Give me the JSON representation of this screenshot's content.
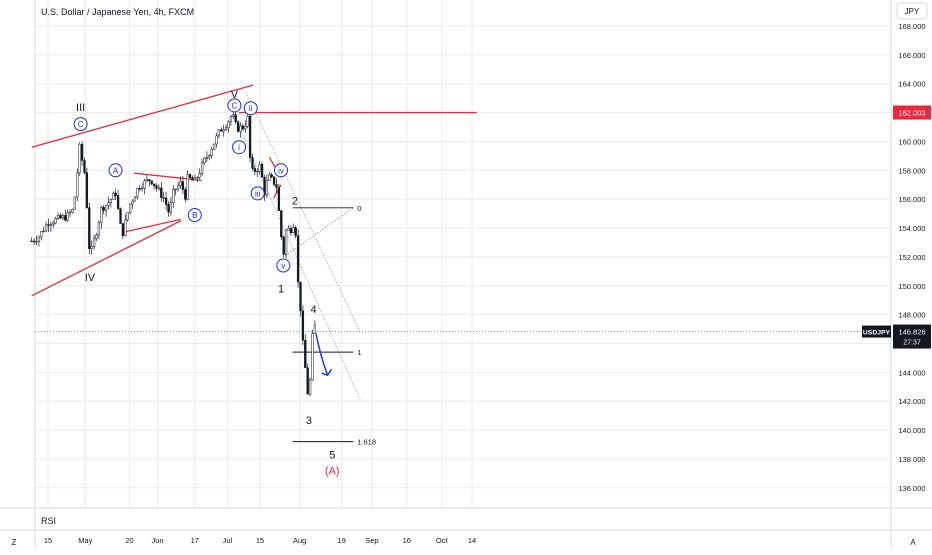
{
  "header": {
    "title": "U.S. Dollar / Japanese Yen, 4h, FXCM",
    "currency": "JPY"
  },
  "rsi_label": "RSI",
  "corner_left": "Z",
  "corner_right": "A",
  "colors": {
    "candle": "#131722",
    "trendline": "#e8283c",
    "label_blue": "#1f2ad6",
    "fib": "#131722",
    "channel": "#9aa0aa",
    "arrow": "#2741d8",
    "grid": "#e9ebee"
  },
  "chart_data": {
    "type": "candlestick",
    "symbol": "USDJPY",
    "interval": "4h",
    "y_range": [
      134.6,
      169.8
    ],
    "y_ticks": [
      "168.000",
      "166.000",
      "164.000",
      "162.000",
      "160.000",
      "158.000",
      "156.000",
      "154.000",
      "152.000",
      "150.000",
      "148.000",
      "146.000",
      "144.000",
      "142.000",
      "140.000",
      "138.000",
      "136.000"
    ],
    "x_ticks": [
      "15",
      "May",
      "20",
      "Jun",
      "17",
      "Jul",
      "15",
      "Aug",
      "19",
      "Sep",
      "16",
      "Oct",
      "14"
    ],
    "price_tags": [
      {
        "label": "162.003",
        "value": 162.003
      },
      {
        "symbol": "USDJPY",
        "label": "146.826",
        "countdown": "27:37",
        "value": 146.826
      }
    ],
    "price_path": [
      {
        "date": "2024-04-08",
        "price": 153.1
      },
      {
        "date": "2024-04-11",
        "price": 153.4
      },
      {
        "date": "2024-04-15",
        "price": 154.4
      },
      {
        "date": "2024-04-19",
        "price": 154.6
      },
      {
        "date": "2024-04-23",
        "price": 154.8
      },
      {
        "date": "2024-04-26",
        "price": 155.3
      },
      {
        "date": "2024-04-29",
        "price": 160.2
      },
      {
        "date": "2024-04-30",
        "price": 157.8
      },
      {
        "date": "2024-05-01",
        "price": 157.9
      },
      {
        "date": "2024-05-02",
        "price": 154.5
      },
      {
        "date": "2024-05-03",
        "price": 152.0
      },
      {
        "date": "2024-05-06",
        "price": 153.9
      },
      {
        "date": "2024-05-08",
        "price": 155.4
      },
      {
        "date": "2024-05-10",
        "price": 155.6
      },
      {
        "date": "2024-05-13",
        "price": 156.2
      },
      {
        "date": "2024-05-14",
        "price": 156.5
      },
      {
        "date": "2024-05-16",
        "price": 154.2
      },
      {
        "date": "2024-05-17",
        "price": 153.6
      },
      {
        "date": "2024-05-20",
        "price": 155.6
      },
      {
        "date": "2024-05-24",
        "price": 156.9
      },
      {
        "date": "2024-05-29",
        "price": 157.4
      },
      {
        "date": "2024-06-04",
        "price": 156.0
      },
      {
        "date": "2024-06-06",
        "price": 155.0
      },
      {
        "date": "2024-06-08",
        "price": 156.6
      },
      {
        "date": "2024-06-11",
        "price": 157.1
      },
      {
        "date": "2024-06-13",
        "price": 156.2
      },
      {
        "date": "2024-06-14",
        "price": 157.5
      },
      {
        "date": "2024-06-17",
        "price": 157.2
      },
      {
        "date": "2024-06-21",
        "price": 158.6
      },
      {
        "date": "2024-06-24",
        "price": 159.5
      },
      {
        "date": "2024-06-28",
        "price": 160.8
      },
      {
        "date": "2024-07-01",
        "price": 161.3
      },
      {
        "date": "2024-07-03",
        "price": 161.9
      },
      {
        "date": "2024-07-05",
        "price": 160.9
      },
      {
        "date": "2024-07-08",
        "price": 161.0
      },
      {
        "date": "2024-07-10",
        "price": 161.7
      },
      {
        "date": "2024-07-11",
        "price": 157.8
      },
      {
        "date": "2024-07-12",
        "price": 157.9
      },
      {
        "date": "2024-07-15",
        "price": 158.3
      },
      {
        "date": "2024-07-17",
        "price": 156.4
      },
      {
        "date": "2024-07-18",
        "price": 157.2
      },
      {
        "date": "2024-07-19",
        "price": 157.5
      },
      {
        "date": "2024-07-22",
        "price": 157.0
      },
      {
        "date": "2024-07-24",
        "price": 153.6
      },
      {
        "date": "2024-07-25",
        "price": 152.0
      },
      {
        "date": "2024-07-26",
        "price": 153.8
      },
      {
        "date": "2024-07-29",
        "price": 154.0
      },
      {
        "date": "2024-07-30",
        "price": 155.1
      },
      {
        "date": "2024-07-31",
        "price": 150.5
      },
      {
        "date": "2024-08-01",
        "price": 149.5
      },
      {
        "date": "2024-08-02",
        "price": 146.6
      },
      {
        "date": "2024-08-05",
        "price": 141.7
      },
      {
        "date": "2024-08-06",
        "price": 145.2
      },
      {
        "date": "2024-08-07",
        "price": 147.6
      },
      {
        "date": "2024-08-08",
        "price": 146.826
      }
    ],
    "trend_lines": [
      {
        "from": {
          "date": "2024-04-08",
          "price": 159.6
        },
        "to": {
          "date": "2024-07-12",
          "price": 163.9
        }
      },
      {
        "from": {
          "date": "2024-04-08",
          "price": 149.3
        },
        "to": {
          "date": "2024-06-11",
          "price": 154.5
        }
      },
      {
        "from": {
          "date": "2024-05-22",
          "price": 157.8
        },
        "to": {
          "date": "2024-06-20",
          "price": 157.3
        }
      },
      {
        "from": {
          "date": "2024-05-17",
          "price": 153.7
        },
        "to": {
          "date": "2024-06-11",
          "price": 154.6
        }
      },
      {
        "from": {
          "date": "2024-07-19",
          "price": 158.9
        },
        "to": {
          "date": "2024-07-24",
          "price": 157.5
        }
      },
      {
        "from": {
          "date": "2024-07-21",
          "price": 156.1
        },
        "to": {
          "date": "2024-07-24",
          "price": 157.0
        }
      },
      {
        "from": {
          "date": "2024-07-06",
          "price": 162.0
        },
        "to": {
          "date": "2024-10-16",
          "price": 162.0
        }
      }
    ],
    "channel_lines": [
      {
        "from": {
          "date": "2024-07-09",
          "price": 163.4
        },
        "to": {
          "date": "2024-08-27",
          "price": 146.8
        }
      },
      {
        "from": {
          "date": "2024-07-06",
          "price": 161.0
        },
        "to": {
          "date": "2024-08-27",
          "price": 142.1
        }
      }
    ],
    "fib_levels": [
      {
        "label": "0",
        "price": 155.4,
        "from": "2024-07-29",
        "to": "2024-08-24"
      },
      {
        "label": "1",
        "price": 145.4,
        "from": "2024-07-29",
        "to": "2024-08-24"
      },
      {
        "label": "1.618",
        "price": 139.2,
        "from": "2024-07-29",
        "to": "2024-08-24"
      }
    ],
    "wave_labels": [
      {
        "text": "III",
        "date": "2024-04-29",
        "price": 162.4
      },
      {
        "text": "C",
        "date": "2024-04-29",
        "price": 161.2,
        "circled": true
      },
      {
        "text": "IV",
        "date": "2024-05-03",
        "price": 150.6
      },
      {
        "text": "A",
        "date": "2024-05-14",
        "price": 158.0,
        "circled": true
      },
      {
        "text": "B",
        "date": "2024-06-17",
        "price": 154.9,
        "circled": true
      },
      {
        "text": "V",
        "date": "2024-07-04",
        "price": 163.3
      },
      {
        "text": "C",
        "date": "2024-07-04",
        "price": 162.5,
        "circled": true
      },
      {
        "text": "ii",
        "date": "2024-07-11",
        "price": 162.3,
        "circled": true
      },
      {
        "text": "i",
        "date": "2024-07-06",
        "price": 159.6,
        "circled": true
      },
      {
        "text": "iii",
        "date": "2024-07-14",
        "price": 156.4,
        "circled": true
      },
      {
        "text": "iv",
        "date": "2024-07-24",
        "price": 158.0,
        "circled": true
      },
      {
        "text": "v",
        "date": "2024-07-25",
        "price": 151.4,
        "circled": true
      },
      {
        "text": "2",
        "date": "2024-07-30",
        "price": 155.9
      },
      {
        "text": "1",
        "date": "2024-07-24",
        "price": 149.8
      },
      {
        "text": "4",
        "date": "2024-08-07",
        "price": 148.4
      },
      {
        "text": "3",
        "date": "2024-08-05",
        "price": 140.7
      },
      {
        "text": "5",
        "date": "2024-08-15",
        "price": 138.3
      },
      {
        "text": "(A)",
        "date": "2024-08-15",
        "price": 137.2,
        "color": "red"
      }
    ],
    "projection_arrow": {
      "from": {
        "date": "2024-08-08",
        "price": 146.7
      },
      "to": {
        "date": "2024-08-13",
        "price": 143.8
      }
    },
    "grid": true
  }
}
